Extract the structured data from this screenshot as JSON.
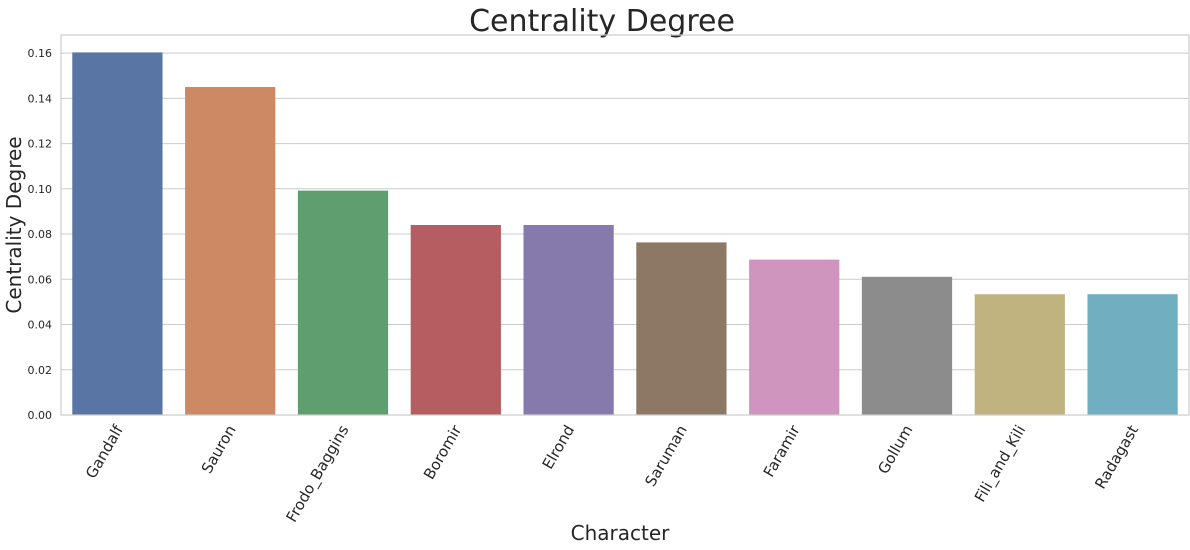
{
  "chart_data": {
    "type": "bar",
    "title": "Centrality Degree",
    "xlabel": "Character",
    "ylabel": "Centrality Degree",
    "categories": [
      "Gandalf",
      "Sauron",
      "Frodo_Baggins",
      "Boromir",
      "Elrond",
      "Saruman",
      "Faramir",
      "Gollum",
      "Fili_and_Kili",
      "Radagast"
    ],
    "values": [
      0.1603,
      0.145,
      0.0992,
      0.084,
      0.084,
      0.0763,
      0.0687,
      0.0611,
      0.0534,
      0.0534
    ],
    "colors": [
      "#5975a4",
      "#cc8963",
      "#5f9e6e",
      "#b55d60",
      "#857aab",
      "#8d7866",
      "#d095bf",
      "#8c8c8c",
      "#c1b37f",
      "#71aec0"
    ],
    "ylim": [
      0,
      0.168
    ],
    "yticks": [
      0.0,
      0.02,
      0.04,
      0.06,
      0.08,
      0.1,
      0.12,
      0.14,
      0.16
    ],
    "ytick_labels": [
      "0.00",
      "0.02",
      "0.04",
      "0.06",
      "0.08",
      "0.10",
      "0.12",
      "0.14",
      "0.16"
    ],
    "grid": true,
    "xtick_rotation": -60
  }
}
